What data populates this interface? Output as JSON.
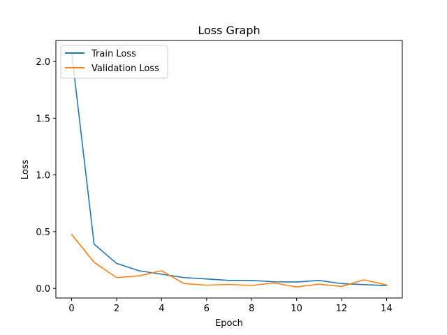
{
  "chart_data": {
    "type": "line",
    "title": "Loss Graph",
    "xlabel": "Epoch",
    "ylabel": "Loss",
    "x": [
      0,
      1,
      2,
      3,
      4,
      5,
      6,
      7,
      8,
      9,
      10,
      11,
      12,
      13,
      14
    ],
    "xlim": [
      -0.7,
      14.7
    ],
    "ylim": [
      -0.085,
      2.185
    ],
    "xticks": [
      0,
      2,
      4,
      6,
      8,
      10,
      12,
      14
    ],
    "yticks": [
      0.0,
      0.5,
      1.0,
      1.5,
      2.0
    ],
    "xtick_labels": [
      "0",
      "2",
      "4",
      "6",
      "8",
      "10",
      "12",
      "14"
    ],
    "ytick_labels": [
      "0.0",
      "0.5",
      "1.0",
      "1.5",
      "2.0"
    ],
    "grid": false,
    "legend_position": "top-left",
    "series": [
      {
        "name": "Train Loss",
        "color": "#1f77b4",
        "values": [
          2.08,
          0.39,
          0.22,
          0.155,
          0.125,
          0.095,
          0.083,
          0.07,
          0.07,
          0.058,
          0.056,
          0.07,
          0.042,
          0.033,
          0.025
        ]
      },
      {
        "name": "Validation Loss",
        "color": "#ff7f0e",
        "values": [
          0.475,
          0.23,
          0.095,
          0.11,
          0.155,
          0.042,
          0.028,
          0.035,
          0.025,
          0.048,
          0.012,
          0.037,
          0.017,
          0.075,
          0.03
        ]
      }
    ]
  }
}
